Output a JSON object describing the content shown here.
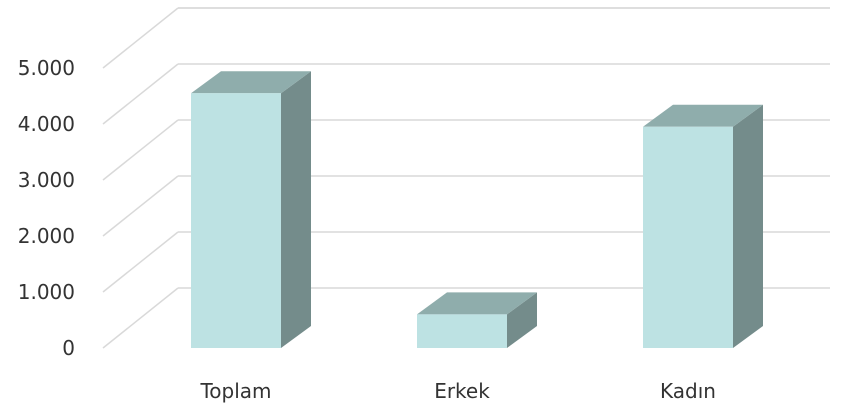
{
  "chart_data": {
    "type": "bar",
    "categories": [
      "Toplam",
      "Erkek",
      "Kadın"
    ],
    "values": [
      4550,
      600,
      3950
    ],
    "yticks": [
      "0",
      "1.000",
      "2.000",
      "3.000",
      "4.000",
      "5.000"
    ],
    "ylim": [
      0,
      5000
    ],
    "grid": true,
    "legend": "none",
    "colors": {
      "bar_front": "#bde2e3",
      "bar_top": "#8fadac",
      "bar_side": "#748c8b",
      "gridline": "#d9d9d9",
      "text": "#333333"
    }
  }
}
